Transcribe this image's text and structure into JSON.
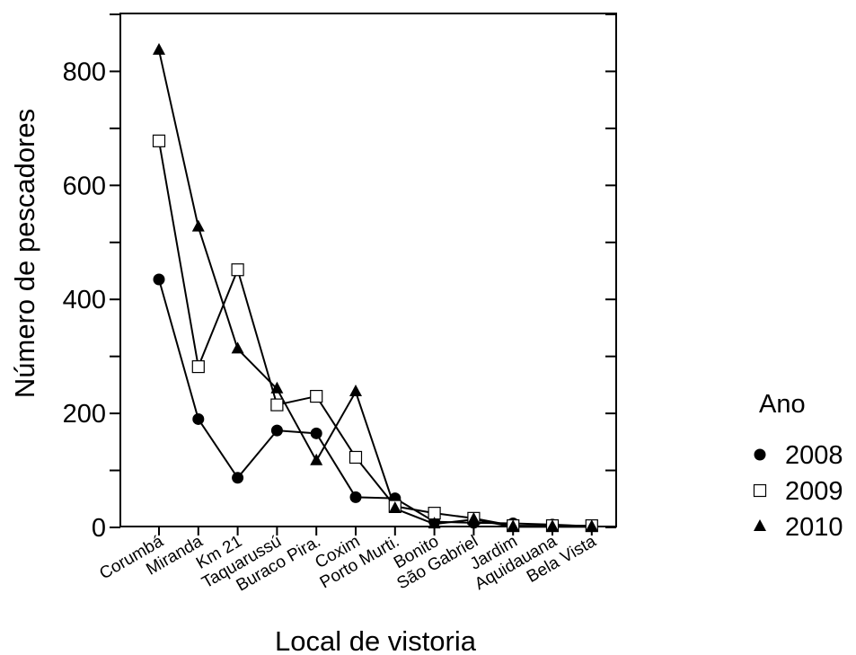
{
  "chart_data": {
    "type": "line",
    "xlabel": "Local de vistoria",
    "ylabel": "Número de pescadores",
    "ylim": [
      0,
      900
    ],
    "yticks": [
      0,
      200,
      400,
      600,
      800
    ],
    "categories": [
      "Corumbá",
      "Miranda",
      "Km 21",
      "Taquarussú",
      "Buraco Pira.",
      "Coxim",
      "Porto Murti.",
      "Bonito",
      "São Gabriel",
      "Jardim",
      "Aquidauana",
      "Bela Vista"
    ],
    "legend": {
      "title": "Ano",
      "position": "right"
    },
    "grid": false,
    "series": [
      {
        "name": "2008",
        "marker": "filled-circle",
        "values": [
          435,
          190,
          87,
          170,
          165,
          53,
          51,
          10,
          8,
          7,
          5,
          2
        ]
      },
      {
        "name": "2009",
        "marker": "open-square",
        "values": [
          678,
          282,
          452,
          215,
          230,
          123,
          37,
          25,
          16,
          3,
          3,
          3
        ]
      },
      {
        "name": "2010",
        "marker": "filled-triangle",
        "values": [
          837,
          527,
          313,
          243,
          117,
          238,
          33,
          6,
          14,
          1,
          1,
          1
        ]
      }
    ]
  }
}
